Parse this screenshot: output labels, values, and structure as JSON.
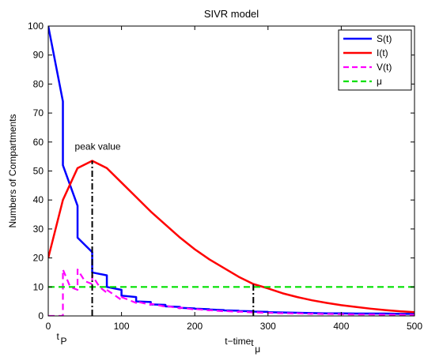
{
  "chart_data": {
    "type": "line",
    "title": "SIVR model",
    "xlabel": "t−time",
    "ylabel": "Numbers of Compartments",
    "xlim": [
      0,
      500
    ],
    "ylim": [
      0,
      100
    ],
    "xticks": [
      0,
      100,
      200,
      300,
      400,
      500
    ],
    "yticks": [
      0,
      10,
      20,
      30,
      40,
      50,
      60,
      70,
      80,
      90,
      100
    ],
    "grid": false,
    "legend_position": "top-right",
    "series": [
      {
        "name": "S(t)",
        "color": "#0000ff",
        "style": "solid",
        "x": [
          0,
          20,
          20,
          40,
          40,
          60,
          60,
          80,
          80,
          100,
          100,
          120,
          120,
          140,
          140,
          160,
          160,
          180,
          180,
          200,
          200,
          220,
          220,
          240,
          240,
          260,
          260,
          280,
          280,
          300,
          300,
          320,
          320,
          340,
          340,
          360,
          360,
          380,
          380,
          400,
          400,
          420,
          420,
          440,
          440,
          460,
          460,
          480,
          480,
          500
        ],
        "y": [
          100,
          74,
          52,
          38,
          27,
          22,
          15,
          14,
          10,
          9,
          7,
          6.5,
          5,
          4.8,
          4,
          3.8,
          3.3,
          3.1,
          2.8,
          2.6,
          2.5,
          2.3,
          2.2,
          2.0,
          1.9,
          1.8,
          1.7,
          1.6,
          1.5,
          1.4,
          1.3,
          1.2,
          1.2,
          1.1,
          1.1,
          1.0,
          1.0,
          0.9,
          0.9,
          0.9,
          0.9,
          0.8,
          0.8,
          0.8,
          0.8,
          0.8,
          0.8,
          0.7,
          0.7,
          0.7
        ]
      },
      {
        "name": "I(t)",
        "color": "#ff0000",
        "style": "solid",
        "x": [
          0,
          20,
          40,
          60,
          80,
          100,
          120,
          140,
          160,
          180,
          200,
          220,
          240,
          260,
          280,
          300,
          320,
          340,
          360,
          380,
          400,
          420,
          440,
          460,
          480,
          500
        ],
        "y": [
          20,
          40,
          51,
          53.5,
          51,
          46,
          41,
          36,
          31.5,
          27,
          23,
          19.5,
          16.5,
          13.5,
          11,
          9.5,
          7.8,
          6.5,
          5.4,
          4.5,
          3.7,
          3.1,
          2.5,
          2.0,
          1.6,
          1.3
        ]
      },
      {
        "name": "V(t)",
        "color": "#ff00ff",
        "style": "dashed",
        "x": [
          0,
          20,
          20,
          30,
          40,
          40,
          50,
          60,
          60,
          70,
          80,
          80,
          100,
          100,
          120,
          120,
          140,
          140,
          160,
          160,
          180,
          180,
          200,
          200,
          220,
          220,
          240,
          240,
          260,
          260,
          280,
          280,
          300,
          300,
          320,
          320,
          340,
          340,
          360,
          360,
          380,
          380,
          400,
          400,
          420,
          420,
          440,
          440,
          460,
          460,
          480,
          480,
          500
        ],
        "y": [
          0,
          0,
          16,
          10,
          9,
          16,
          12,
          11,
          14,
          10,
          8,
          9,
          5.5,
          6.5,
          4.5,
          5,
          3.8,
          4.2,
          3.2,
          3.5,
          2.6,
          2.9,
          2.2,
          2.4,
          1.9,
          2.0,
          1.6,
          1.7,
          1.4,
          1.5,
          1.2,
          1.3,
          1.0,
          1.1,
          0.9,
          1.0,
          0.8,
          0.9,
          0.7,
          0.8,
          0.6,
          0.7,
          0.6,
          0.6,
          0.5,
          0.5,
          0.5,
          0.5,
          0.4,
          0.4,
          0.4,
          0.4,
          0.3
        ]
      },
      {
        "name": "μ",
        "color": "#00e000",
        "style": "dashed",
        "x": [
          0,
          500
        ],
        "y": [
          10,
          10
        ]
      }
    ],
    "annotations": {
      "peak_label": "peak value",
      "peak_line": {
        "x": 60,
        "y_from": 0,
        "y_to": 53.5
      },
      "mu_line": {
        "x": 280,
        "y_from": 0,
        "y_to": 11
      },
      "tp_label": "t",
      "tp_sub": "P",
      "tp_x": 60,
      "tmu_label": "t",
      "tmu_sub": "μ",
      "tmu_x": 280
    }
  }
}
